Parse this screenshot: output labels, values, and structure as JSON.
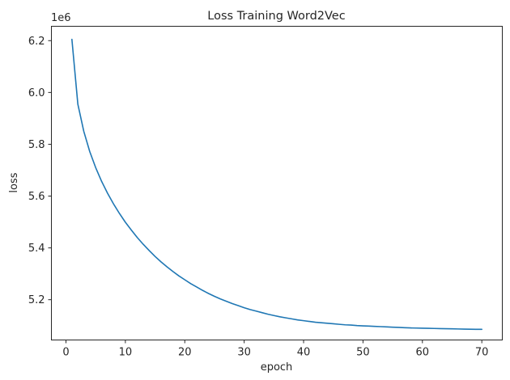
{
  "chart_data": {
    "type": "line",
    "title": "Loss Training Word2Vec",
    "xlabel": "epoch",
    "ylabel": "loss",
    "y_scale_label": "1e6",
    "xlim": [
      -2.45,
      73.45
    ],
    "ylim": [
      5.0445,
      6.2555
    ],
    "xticks": [
      0,
      10,
      20,
      30,
      40,
      50,
      60,
      70
    ],
    "yticks": [
      5.2,
      5.4,
      5.6,
      5.8,
      6.0,
      6.2
    ],
    "ytick_labels": [
      "5.2",
      "5.4",
      "5.6",
      "5.8",
      "6.0",
      "6.2"
    ],
    "grid": false,
    "line_color": "#1f77b4",
    "series": [
      {
        "x": [
          1,
          2,
          3,
          4,
          5,
          6,
          7,
          8,
          9,
          10,
          11,
          12,
          13,
          14,
          15,
          16,
          17,
          18,
          19,
          20,
          21,
          22,
          23,
          24,
          25,
          26,
          27,
          28,
          29,
          30,
          31,
          32,
          33,
          34,
          35,
          36,
          37,
          38,
          39,
          40,
          41,
          42,
          43,
          44,
          45,
          46,
          47,
          48,
          49,
          50,
          51,
          52,
          53,
          54,
          55,
          56,
          57,
          58,
          59,
          60,
          61,
          62,
          63,
          64,
          65,
          66,
          67,
          68,
          69,
          70
        ],
        "values": [
          6.205,
          5.955,
          5.85,
          5.772,
          5.71,
          5.657,
          5.611,
          5.57,
          5.533,
          5.499,
          5.469,
          5.44,
          5.414,
          5.39,
          5.367,
          5.346,
          5.327,
          5.309,
          5.292,
          5.277,
          5.262,
          5.249,
          5.236,
          5.224,
          5.213,
          5.203,
          5.194,
          5.185,
          5.177,
          5.169,
          5.162,
          5.156,
          5.15,
          5.144,
          5.139,
          5.134,
          5.13,
          5.126,
          5.122,
          5.119,
          5.116,
          5.113,
          5.111,
          5.109,
          5.107,
          5.105,
          5.103,
          5.102,
          5.1,
          5.099,
          5.098,
          5.097,
          5.096,
          5.095,
          5.094,
          5.093,
          5.092,
          5.091,
          5.0905,
          5.09,
          5.0895,
          5.089,
          5.0885,
          5.088,
          5.0875,
          5.087,
          5.0865,
          5.086,
          5.0858,
          5.0855
        ]
      }
    ]
  }
}
